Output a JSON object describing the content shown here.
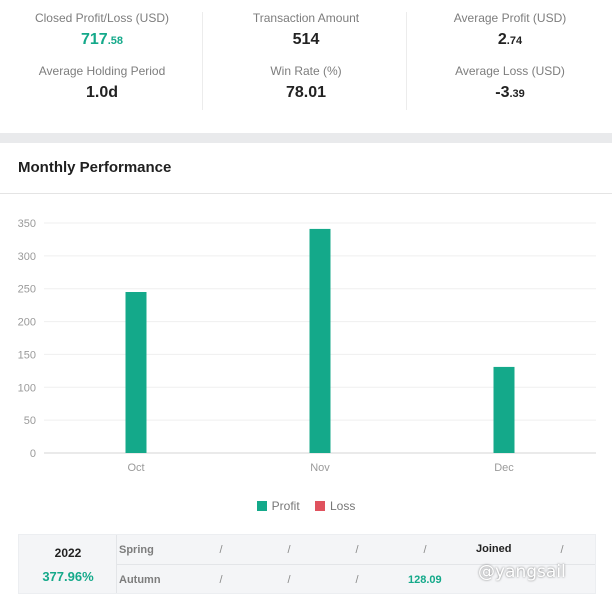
{
  "stats": [
    {
      "label": "Closed Profit/Loss (USD)",
      "int": "717",
      "frac": ".58",
      "highlight": true
    },
    {
      "label": "Transaction Amount",
      "int": "514",
      "frac": "",
      "highlight": false
    },
    {
      "label": "Average Profit (USD)",
      "int": "2",
      "frac": ".74",
      "highlight": false
    },
    {
      "label": "Average Holding Period",
      "int": "1.0d",
      "frac": "",
      "highlight": false
    },
    {
      "label": "Win Rate (%)",
      "int": "78.01",
      "frac": "",
      "highlight": false
    },
    {
      "label": "Average Loss (USD)",
      "int": "-3",
      "frac": ".39",
      "highlight": false
    }
  ],
  "section": {
    "title": "Monthly Performance"
  },
  "chart_data": {
    "type": "bar",
    "categories": [
      "Oct",
      "Nov",
      "Dec"
    ],
    "series": [
      {
        "name": "Profit",
        "values": [
          245,
          341,
          131
        ],
        "color": "#14a98a"
      },
      {
        "name": "Loss",
        "values": [
          0,
          0,
          0
        ],
        "color": "#e0525e"
      }
    ],
    "yticks": [
      0,
      50,
      100,
      150,
      200,
      250,
      300,
      350
    ],
    "ylim": [
      0,
      350
    ],
    "grid": true,
    "legend_position": "bottom-center"
  },
  "legend": [
    {
      "label": "Profit",
      "color": "#14a98a"
    },
    {
      "label": "Loss",
      "color": "#e0525e"
    }
  ],
  "table": {
    "year": "2022",
    "return": "377.96%",
    "rows": [
      {
        "label": "Spring",
        "cells": [
          "/",
          "/",
          "/",
          "/",
          "Joined",
          "/"
        ]
      },
      {
        "label": "Autumn",
        "cells": [
          "/",
          "/",
          "/",
          "128.09",
          "",
          ""
        ]
      }
    ]
  },
  "watermark": "@yangsail",
  "colors": {
    "accent": "#14a98a",
    "loss": "#e0525e",
    "band": "#e9eaec"
  }
}
